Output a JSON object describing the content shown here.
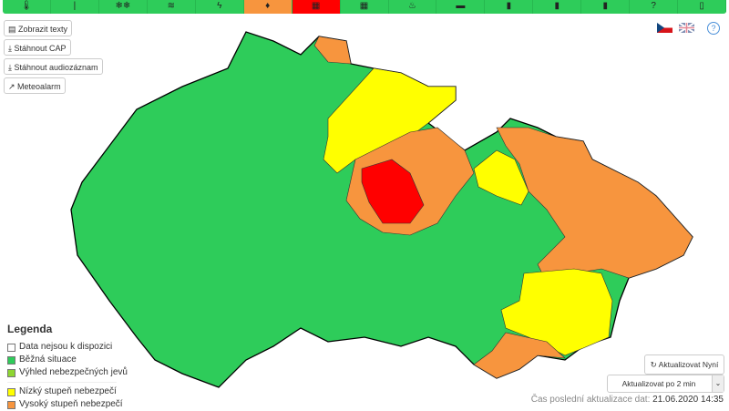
{
  "toolbar": {
    "items": [
      {
        "icon": "thermometer-icon",
        "glyph": "🌡",
        "color": "#2ecc5a"
      },
      {
        "icon": "wind-icon",
        "glyph": "|",
        "color": "#2ecc5a"
      },
      {
        "icon": "snow-icon",
        "glyph": "❄❄",
        "color": "#2ecc5a"
      },
      {
        "icon": "fog-icon",
        "glyph": "≋",
        "color": "#2ecc5a"
      },
      {
        "icon": "lightning-icon",
        "glyph": "ϟ",
        "color": "#2ecc5a"
      },
      {
        "icon": "rain-icon",
        "glyph": "♦",
        "color": "#f7953e"
      },
      {
        "icon": "flood-icon",
        "glyph": "▦",
        "color": "#ff0000"
      },
      {
        "icon": "flood-warning-icon",
        "glyph": "▦",
        "color": "#2ecc5a"
      },
      {
        "icon": "fire-icon",
        "glyph": "♨",
        "color": "#2ecc5a"
      },
      {
        "icon": "car-icon",
        "glyph": "▬",
        "color": "#2ecc5a"
      },
      {
        "icon": "smog-factory-icon",
        "glyph": "▮",
        "color": "#2ecc5a"
      },
      {
        "icon": "smog-factory-2-icon",
        "glyph": "▮",
        "color": "#2ecc5a"
      },
      {
        "icon": "smog-factory-3-icon",
        "glyph": "▮",
        "color": "#2ecc5a"
      },
      {
        "icon": "question-icon",
        "glyph": "?",
        "color": "#2ecc5a"
      },
      {
        "icon": "document-icon",
        "glyph": "▯",
        "color": "#2ecc5a"
      }
    ]
  },
  "buttons": {
    "texts": "Zobrazit texty",
    "cap": "Stáhnout CAP",
    "audio": "Stáhnout audiozáznam",
    "meteoalarm": "Meteoalarm"
  },
  "legend": {
    "title": "Legenda",
    "items": [
      {
        "label": "Data nejsou k dispozici",
        "color": "#ffffff"
      },
      {
        "label": "Běžná situace",
        "color": "#2ecc5a"
      },
      {
        "label": "Výhled nebezpečných jevů",
        "color": "#8ed631"
      },
      {
        "label": "Nízký stupeň nebezpečí",
        "color": "#ffff00"
      },
      {
        "label": "Vysoký stupeň nebezpečí",
        "color": "#f7953e"
      }
    ]
  },
  "map_colors": {
    "normal": "#2ecc5a",
    "low": "#ffff00",
    "high": "#f7953e",
    "extreme": "#ff0000"
  },
  "refresh": {
    "label": "Aktualizovat Nyní"
  },
  "interval": {
    "selected": "Aktualizovat po 2 min"
  },
  "updated": {
    "label": "Čas poslední aktualizace dat:",
    "value": "21.06.2020 14:35"
  },
  "help": "?"
}
